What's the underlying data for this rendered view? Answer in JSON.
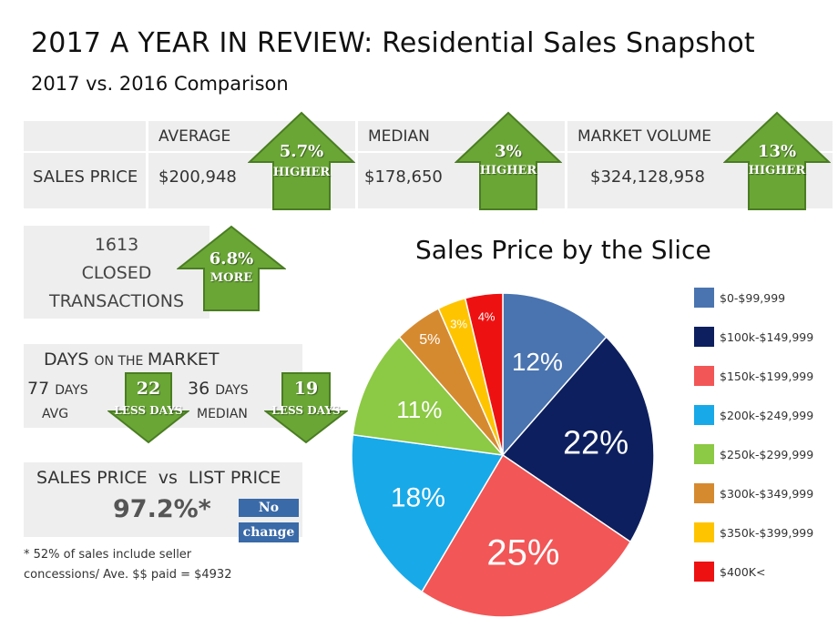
{
  "header": {
    "title": "2017 A YEAR IN REVIEW: Residential Sales Snapshot",
    "subtitle": "2017 vs. 2016 Comparison"
  },
  "sales_table": {
    "row_label": "SALES PRICE",
    "average": {
      "label": "AVERAGE",
      "value": "$200,948",
      "change_pct": "5.7%",
      "change_word": "HIGHER"
    },
    "median": {
      "label": "MEDIAN",
      "value": "$178,650",
      "change_pct": "3%",
      "change_word": "HIGHER"
    },
    "volume": {
      "label": "MARKET VOLUME",
      "value": "$324,128,958",
      "change_pct": "13%",
      "change_word": "HIGHER"
    }
  },
  "closed": {
    "count": "1613",
    "line2": "CLOSED",
    "line3": "TRANSACTIONS",
    "change_pct": "6.8%",
    "change_word": "MORE"
  },
  "days": {
    "title_big1": "DAYS ",
    "title_small": "ON THE ",
    "title_big2": "MARKET",
    "avg_num": "77 ",
    "avg_unit": "DAYS",
    "avg_label": "AVG",
    "avg_change": "22",
    "avg_change_word": "LESS DAYS",
    "med_num": "36 ",
    "med_unit": "DAYS",
    "med_label": "MEDIAN",
    "med_change": "19",
    "med_change_word": "LESS DAYS"
  },
  "list_price": {
    "label": "SALES PRICE  vs  LIST PRICE",
    "value": "97.2%*",
    "badge1": "No",
    "badge2": "change"
  },
  "footnote": {
    "line1": "* 52% of sales include seller",
    "line2": "concessions/ Ave. $$ paid = $4932"
  },
  "colors": {
    "arrow_green": "#6aa636",
    "arrow_dark": "#4a7d22"
  },
  "chart_data": {
    "type": "pie",
    "title": "Sales Price by the Slice",
    "slices": [
      {
        "label": "$0-$99,999",
        "value": 12,
        "display": "12%",
        "color": "#4a74b0"
      },
      {
        "label": "$100k-$149,999",
        "value": 22,
        "display": "22%",
        "color": "#0d1f5e"
      },
      {
        "label": "$150k-$199,999",
        "value": 25,
        "display": "25%",
        "color": "#f25656"
      },
      {
        "label": "$200k-$249,999",
        "value": 18,
        "display": "18%",
        "color": "#18a9e8"
      },
      {
        "label": "$250k-$299,999",
        "value": 11,
        "display": "11%",
        "color": "#8cc944"
      },
      {
        "label": "$300k-$349,999",
        "value": 5,
        "display": "5%",
        "color": "#d68a30"
      },
      {
        "label": "$350k-$399,999",
        "value": 3,
        "display": "3%",
        "color": "#ffc400"
      },
      {
        "label": "$400K<",
        "value": 4,
        "display": "4%",
        "color": "#ee1111"
      }
    ],
    "legend_position": "right"
  }
}
